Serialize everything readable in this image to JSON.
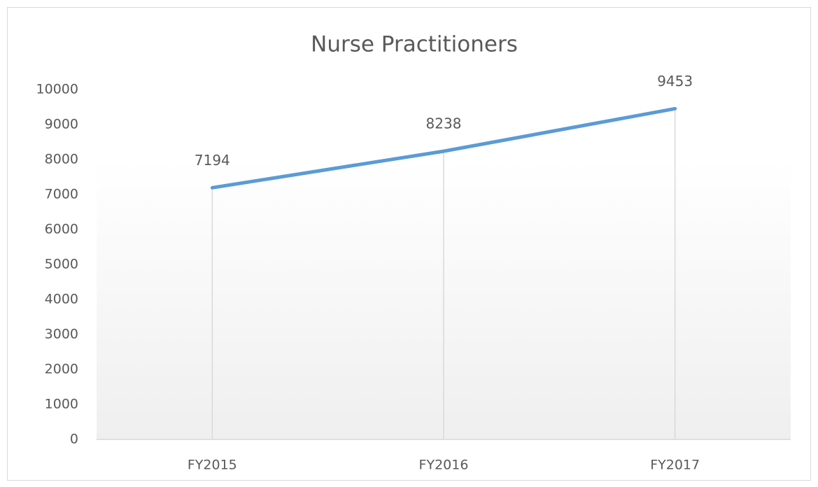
{
  "chart_data": {
    "type": "line",
    "title": "Nurse Practitioners",
    "categories": [
      "FY2015",
      "FY2016",
      "FY2017"
    ],
    "series": [
      {
        "name": "Nurse Practitioners",
        "color": "#5b9bd5",
        "values": [
          7194,
          8238,
          9453
        ]
      }
    ],
    "ylim": [
      0,
      10000
    ],
    "yticks": [
      0,
      1000,
      2000,
      3000,
      4000,
      5000,
      6000,
      7000,
      8000,
      9000,
      10000
    ],
    "drop_lines": true,
    "data_labels": true,
    "grid": false,
    "legend": false
  }
}
